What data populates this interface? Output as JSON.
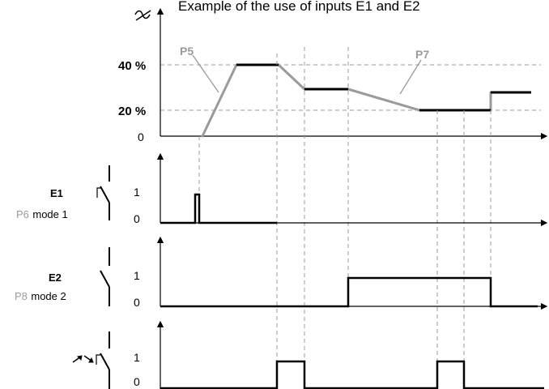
{
  "title": "Example of the use of inputs E1 and E2",
  "top_chart": {
    "y_labels": {
      "high": "40 %",
      "low": "20 %",
      "zero": "0"
    },
    "param_labels": {
      "ramp": "P5",
      "slope": "P7"
    },
    "speed_icon": "speed-variation-icon"
  },
  "inputs": [
    {
      "name": "E1",
      "param": "P6",
      "mode": "mode 1",
      "high": "1",
      "low": "0",
      "switch_icon": "switch-contact-icon"
    },
    {
      "name": "E2",
      "param": "P8",
      "mode": "mode 2",
      "high": "1",
      "low": "0",
      "switch_icon": "switch-contact-icon"
    },
    {
      "name": "",
      "param": "",
      "mode": "",
      "high": "1",
      "low": "0",
      "switch_icon": "motion-sensor-switch-icon"
    }
  ]
}
